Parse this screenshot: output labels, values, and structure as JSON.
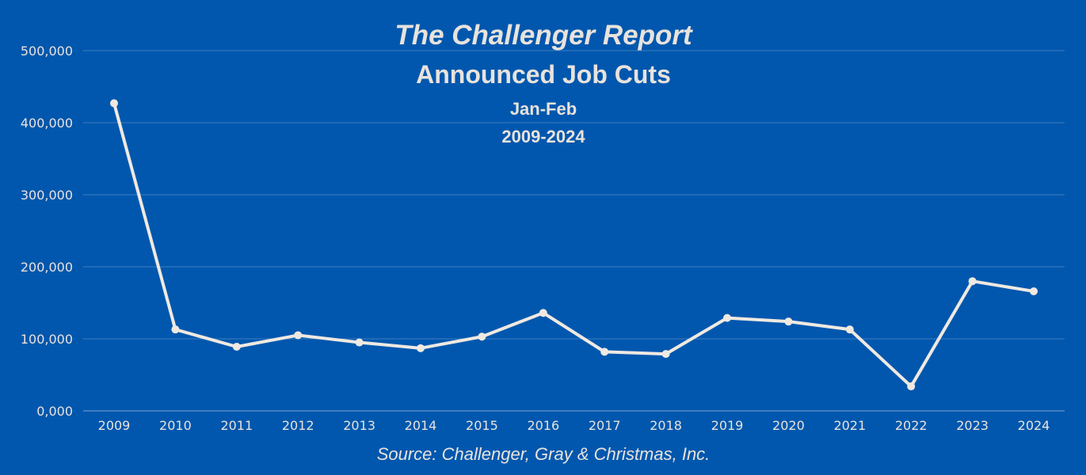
{
  "colors": {
    "background": "#0157ae",
    "text": "#e8e3dc",
    "line": "#efe9e1",
    "grid": "#3f7cc0",
    "axis": "#7fa6d3"
  },
  "chart_data": {
    "type": "line",
    "title": "The Challenger Report",
    "subtitle": "Announced Job Cuts",
    "period": "Jan-Feb",
    "range_label": "2009-2024",
    "source": "Source: Challenger, Gray & Christmas, Inc.",
    "xlabel": "",
    "ylabel": "",
    "ylim": [
      0,
      500000
    ],
    "y_ticks": [
      0,
      100000,
      200000,
      300000,
      400000,
      500000
    ],
    "y_tick_labels": [
      "0,000",
      "100,000",
      "200,000",
      "300,000",
      "400,000",
      "500,000"
    ],
    "grid": true,
    "legend": "none",
    "categories": [
      "2009",
      "2010",
      "2011",
      "2012",
      "2013",
      "2014",
      "2015",
      "2016",
      "2017",
      "2018",
      "2019",
      "2020",
      "2021",
      "2022",
      "2023",
      "2024"
    ],
    "series": [
      {
        "values": [
          427000,
          113000,
          89000,
          105000,
          95000,
          87000,
          103000,
          136000,
          82000,
          79000,
          129000,
          124000,
          113000,
          34000,
          180000,
          166000
        ]
      }
    ]
  }
}
